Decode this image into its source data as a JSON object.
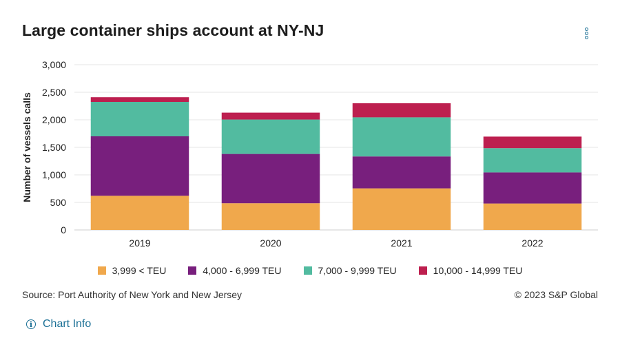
{
  "header": {
    "title": "Large container ships account at NY-NJ"
  },
  "menu": {
    "icon": "kebab-menu-icon"
  },
  "chart_data": {
    "type": "bar",
    "stacked": true,
    "title": "Large container ships account at NY-NJ",
    "xlabel": "",
    "ylabel": "Number of vessels calls",
    "ylim": [
      0,
      3000
    ],
    "yticks": [
      0,
      500,
      1000,
      1500,
      2000,
      2500,
      3000
    ],
    "ytick_labels": [
      "0",
      "500",
      "1,000",
      "1,500",
      "2,000",
      "2,500",
      "3,000"
    ],
    "grid": true,
    "legend_position": "bottom",
    "categories": [
      "2019",
      "2020",
      "2021",
      "2022"
    ],
    "series": [
      {
        "name": "3,999 < TEU",
        "color": "#f0a84c",
        "values": [
          620,
          485,
          755,
          480
        ]
      },
      {
        "name": "4,000 - 6,999 TEU",
        "color": "#781f7d",
        "values": [
          1080,
          895,
          580,
          565
        ]
      },
      {
        "name": "7,000 - 9,999 TEU",
        "color": "#52bba0",
        "values": [
          625,
          625,
          710,
          440
        ]
      },
      {
        "name": "10,000 - 14,999 TEU",
        "color": "#bd1f4f",
        "values": [
          85,
          125,
          255,
          210
        ]
      }
    ]
  },
  "footer": {
    "source": "Source: Port Authority of New York and New Jersey",
    "copyright": "© 2023 S&P Global"
  },
  "chart_info": {
    "label": "Chart Info",
    "icon": "info-icon"
  }
}
